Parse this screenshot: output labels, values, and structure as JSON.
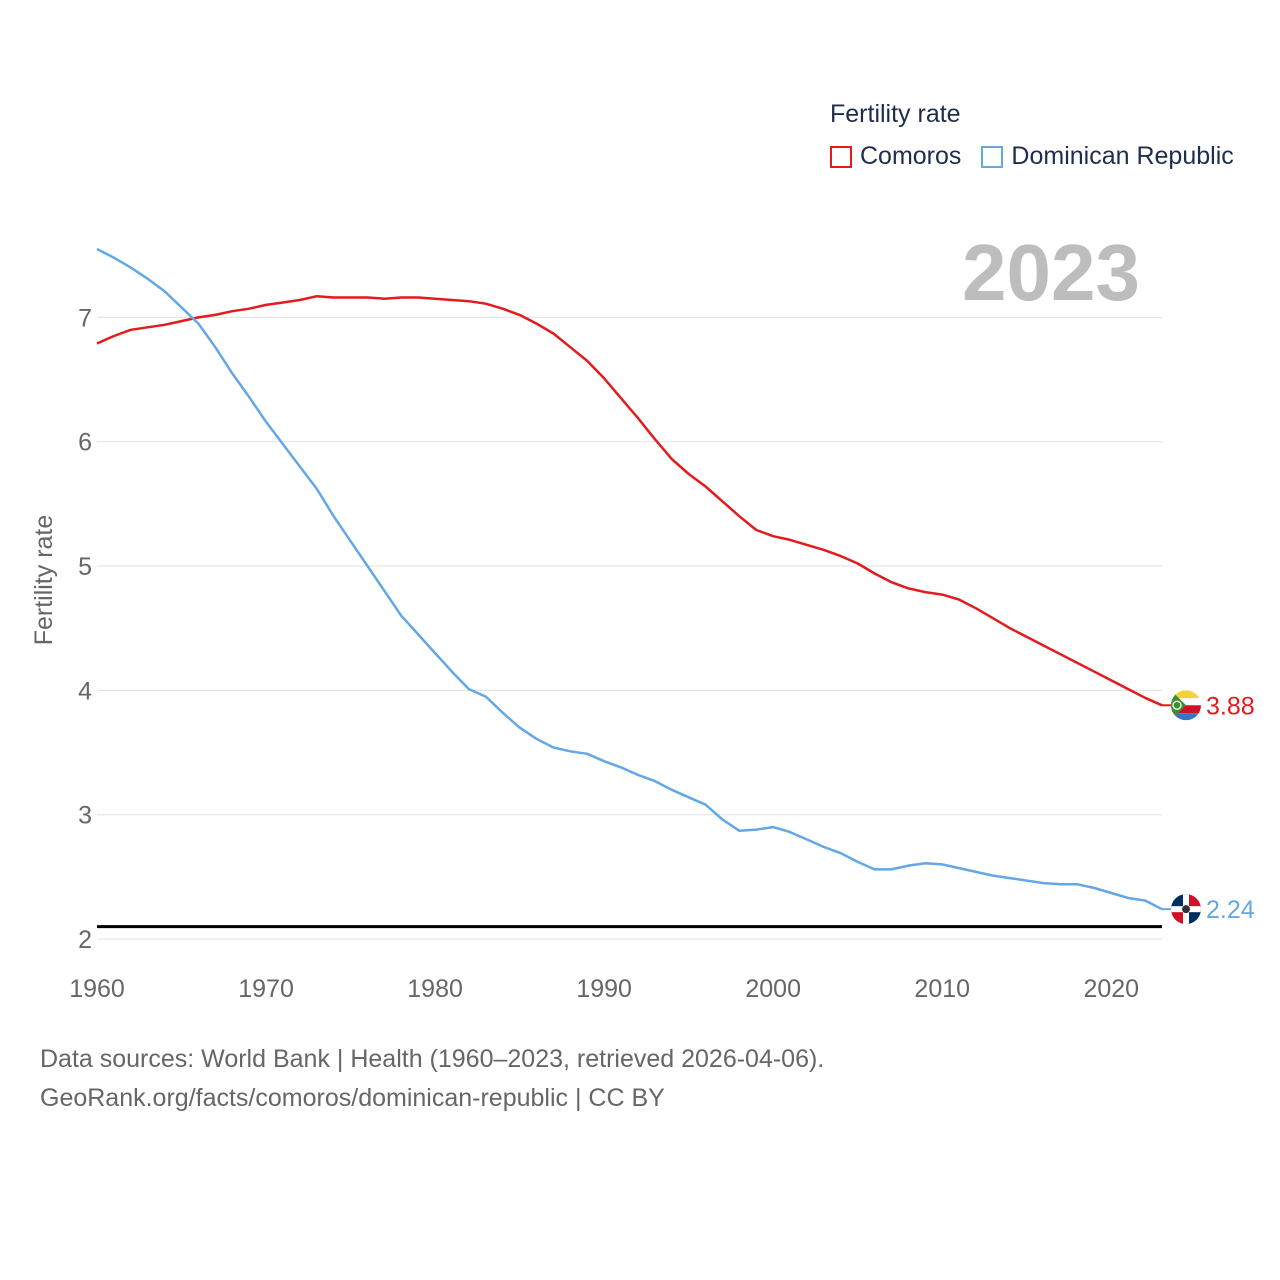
{
  "legend": {
    "title": "Fertility rate",
    "items": [
      {
        "name": "Comoros",
        "color": "#e41a1c"
      },
      {
        "name": "Dominican Republic",
        "color": "#63a7e6"
      }
    ]
  },
  "year_label": "2023",
  "source": {
    "line1": "Data sources: World Bank | Health (1960–2023, retrieved 2026-04-06).",
    "line2": "GeoRank.org/facts/comoros/dominican-republic | CC BY"
  },
  "chart_data": {
    "type": "line",
    "title": "Fertility rate",
    "xlabel": "",
    "ylabel": "Fertility rate",
    "xlim": [
      1960,
      2023
    ],
    "ylim": [
      2,
      7.55
    ],
    "x_ticks": [
      1960,
      1970,
      1980,
      1990,
      2000,
      2010,
      2020
    ],
    "y_ticks": [
      2,
      3,
      4,
      5,
      6,
      7
    ],
    "reference_line": 2.1,
    "x": [
      1960,
      1961,
      1962,
      1963,
      1964,
      1965,
      1966,
      1967,
      1968,
      1969,
      1970,
      1971,
      1972,
      1973,
      1974,
      1975,
      1976,
      1977,
      1978,
      1979,
      1980,
      1981,
      1982,
      1983,
      1984,
      1985,
      1986,
      1987,
      1988,
      1989,
      1990,
      1991,
      1992,
      1993,
      1994,
      1995,
      1996,
      1997,
      1998,
      1999,
      2000,
      2001,
      2002,
      2003,
      2004,
      2005,
      2006,
      2007,
      2008,
      2009,
      2010,
      2011,
      2012,
      2013,
      2014,
      2015,
      2016,
      2017,
      2018,
      2019,
      2020,
      2021,
      2022,
      2023
    ],
    "series": [
      {
        "name": "Comoros",
        "color": "#e41a1c",
        "end_label": "3.88",
        "values": [
          6.79,
          6.85,
          6.9,
          6.92,
          6.94,
          6.97,
          7.0,
          7.02,
          7.05,
          7.07,
          7.1,
          7.12,
          7.14,
          7.17,
          7.16,
          7.16,
          7.16,
          7.15,
          7.16,
          7.16,
          7.15,
          7.14,
          7.13,
          7.11,
          7.07,
          7.02,
          6.95,
          6.87,
          6.76,
          6.65,
          6.51,
          6.35,
          6.19,
          6.02,
          5.86,
          5.74,
          5.64,
          5.52,
          5.4,
          5.29,
          5.24,
          5.21,
          5.17,
          5.13,
          5.08,
          5.02,
          4.94,
          4.87,
          4.82,
          4.79,
          4.77,
          4.73,
          4.66,
          4.58,
          4.5,
          4.43,
          4.36,
          4.29,
          4.22,
          4.15,
          4.08,
          4.01,
          3.94,
          3.88
        ]
      },
      {
        "name": "Dominican Republic",
        "color": "#63a7e6",
        "end_label": "2.24",
        "values": [
          7.55,
          7.48,
          7.4,
          7.31,
          7.21,
          7.08,
          6.95,
          6.76,
          6.55,
          6.36,
          6.16,
          5.98,
          5.8,
          5.62,
          5.4,
          5.2,
          5.0,
          4.8,
          4.6,
          4.45,
          4.3,
          4.15,
          4.01,
          3.95,
          3.82,
          3.7,
          3.61,
          3.54,
          3.51,
          3.49,
          3.43,
          3.38,
          3.32,
          3.27,
          3.2,
          3.14,
          3.08,
          2.96,
          2.87,
          2.88,
          2.9,
          2.86,
          2.8,
          2.74,
          2.69,
          2.62,
          2.56,
          2.56,
          2.59,
          2.61,
          2.6,
          2.57,
          2.54,
          2.51,
          2.49,
          2.47,
          2.45,
          2.44,
          2.44,
          2.41,
          2.37,
          2.33,
          2.31,
          2.24
        ]
      }
    ]
  }
}
